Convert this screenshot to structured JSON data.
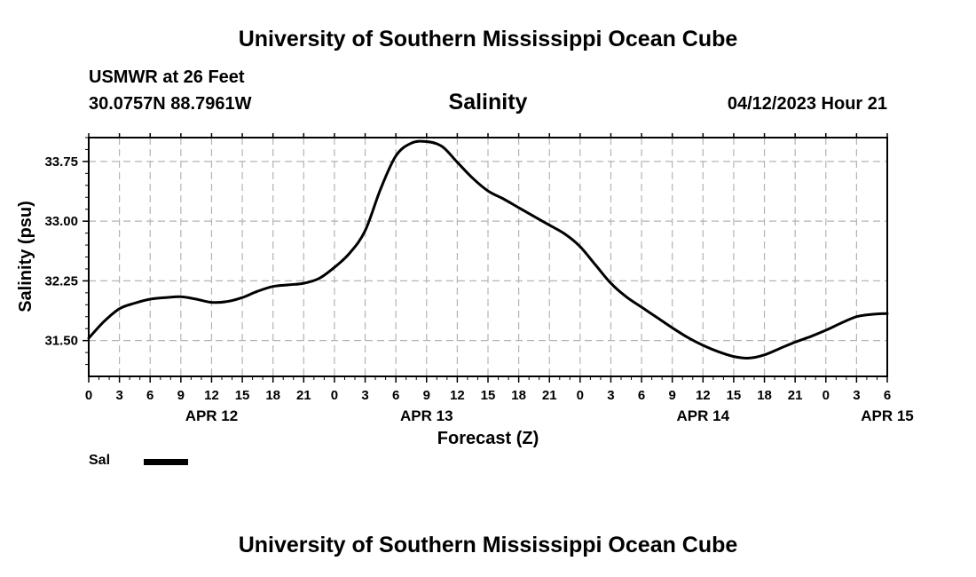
{
  "header": {
    "title": "University of Southern Mississippi Ocean Cube",
    "station": "USMWR at 26 Feet",
    "coords": "30.0757N  88.7961W",
    "parameter": "Salinity",
    "timestamp": "04/12/2023 Hour 21"
  },
  "footer": {
    "title": "University of Southern Mississippi Ocean Cube"
  },
  "legend": {
    "label": "Sal"
  },
  "chart_data": {
    "type": "line",
    "title": "Salinity",
    "xlabel": "Forecast (Z)",
    "ylabel": "Salinity (psu)",
    "ylim": [
      31.05,
      34.05
    ],
    "yticks": [
      31.5,
      32.25,
      33.0,
      33.75
    ],
    "ytick_labels": [
      "31.50",
      "32.25",
      "33.00",
      "33.75"
    ],
    "x_unit": "hours from APR 12 00Z",
    "xlim": [
      0,
      78
    ],
    "xtick_labels": [
      "0",
      "3",
      "6",
      "9",
      "12",
      "15",
      "18",
      "21",
      "0",
      "3",
      "6",
      "9",
      "12",
      "15",
      "18",
      "21",
      "0",
      "3",
      "6",
      "9",
      "12",
      "15",
      "18",
      "21",
      "0",
      "3",
      "6"
    ],
    "day_labels": [
      {
        "label": "APR 12",
        "hour": 12
      },
      {
        "label": "APR 13",
        "hour": 33
      },
      {
        "label": "APR 14",
        "hour": 60
      },
      {
        "label": "APR 15",
        "hour": 78
      }
    ],
    "grid": true,
    "legend_position": "bottom-left",
    "colors": {
      "line": "#000000",
      "grid": "#b4b4b4"
    },
    "series": [
      {
        "name": "Sal",
        "x": [
          0,
          1.5,
          3,
          4.5,
          6,
          7.5,
          9,
          10.5,
          12,
          13.5,
          15,
          16.5,
          18,
          19.5,
          21,
          22.5,
          24,
          25.5,
          27,
          28.5,
          30,
          31.5,
          33,
          34.5,
          36,
          37.5,
          39,
          40.5,
          42,
          43.5,
          45,
          46.5,
          48,
          49.5,
          51,
          52.5,
          54,
          55.5,
          57,
          58.5,
          60,
          61.5,
          63,
          64.5,
          66,
          67.5,
          69,
          70.5,
          72,
          73.5,
          75,
          76.5,
          78
        ],
        "y": [
          31.53,
          31.74,
          31.9,
          31.97,
          32.02,
          32.04,
          32.05,
          32.02,
          31.98,
          31.99,
          32.04,
          32.12,
          32.18,
          32.2,
          32.22,
          32.28,
          32.42,
          32.6,
          32.88,
          33.4,
          33.82,
          33.98,
          34.0,
          33.94,
          33.74,
          33.54,
          33.38,
          33.28,
          33.17,
          33.06,
          32.95,
          32.84,
          32.68,
          32.45,
          32.22,
          32.05,
          31.92,
          31.79,
          31.66,
          31.54,
          31.44,
          31.36,
          31.3,
          31.28,
          31.32,
          31.4,
          31.48,
          31.55,
          31.63,
          31.72,
          31.8,
          31.83,
          31.84
        ]
      }
    ]
  }
}
